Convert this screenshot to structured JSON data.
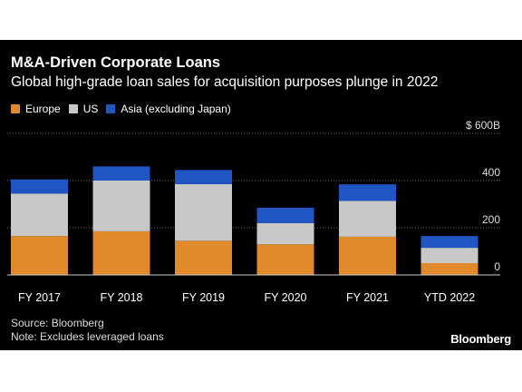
{
  "title": "M&A-Driven Corporate Loans",
  "subtitle": "Global high-grade loan sales for acquisition purposes plunge in 2022",
  "footer": {
    "source": "Source: Bloomberg",
    "note": "Note: Excludes leveraged loans",
    "brand": "Bloomberg"
  },
  "chart_data": {
    "type": "bar",
    "stacked": true,
    "categories": [
      "FY 2017",
      "FY 2018",
      "FY 2019",
      "FY 2020",
      "FY 2021",
      "YTD 2022"
    ],
    "series": [
      {
        "name": "Europe",
        "color": "#e08a2b",
        "values": [
          165,
          185,
          145,
          130,
          162,
          50
        ]
      },
      {
        "name": "US",
        "color": "#c8c8c8",
        "values": [
          180,
          215,
          240,
          90,
          152,
          65
        ]
      },
      {
        "name": "Asia (excluding Japan)",
        "color": "#1f56c4",
        "values": [
          60,
          60,
          60,
          65,
          70,
          50
        ]
      }
    ],
    "y_axis": {
      "ticks": [
        0,
        200,
        400,
        600
      ],
      "tick_labels": [
        "0",
        "200",
        "400",
        "$ 600B"
      ],
      "position": "right",
      "range": [
        0,
        600
      ]
    },
    "grid": true,
    "legend_position": "top-left"
  }
}
